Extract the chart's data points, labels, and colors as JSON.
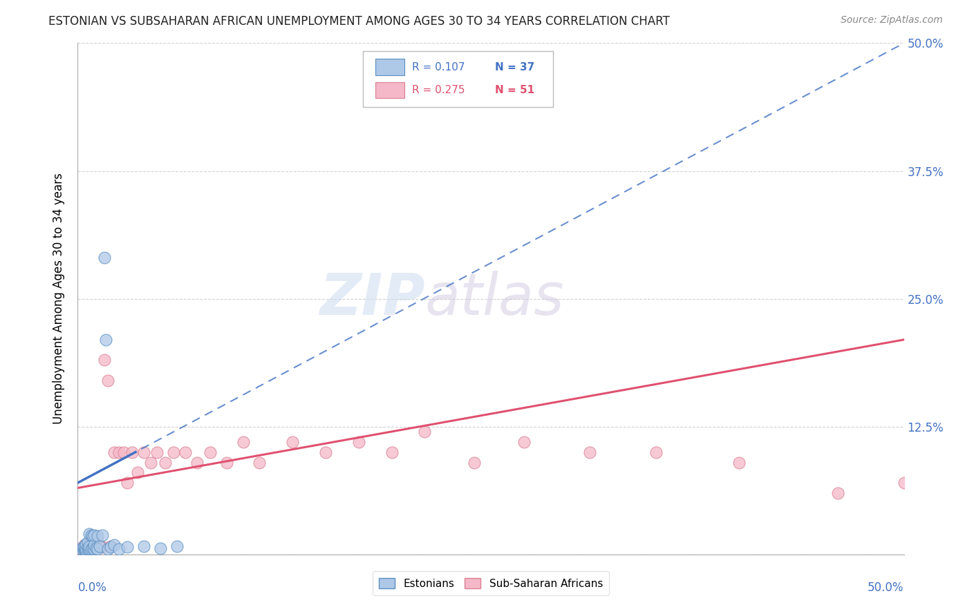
{
  "title": "ESTONIAN VS SUBSAHARAN AFRICAN UNEMPLOYMENT AMONG AGES 30 TO 34 YEARS CORRELATION CHART",
  "source": "Source: ZipAtlas.com",
  "ylabel": "Unemployment Among Ages 30 to 34 years",
  "xlim": [
    0,
    0.5
  ],
  "ylim": [
    0,
    0.5
  ],
  "ytick_vals": [
    0.0,
    0.125,
    0.25,
    0.375,
    0.5
  ],
  "ytick_labels": [
    "",
    "12.5%",
    "25.0%",
    "37.5%",
    "50.0%"
  ],
  "legend_r_estonian": "R = 0.107",
  "legend_n_estonian": "N = 37",
  "legend_r_african": "R = 0.275",
  "legend_n_african": "N = 51",
  "estonian_fill": "#aec8e8",
  "estonian_edge": "#5a8fc0",
  "estonian_line": "#4472c4",
  "african_fill": "#f4b8c8",
  "african_edge": "#d98090",
  "african_line": "#e05070",
  "watermark_zip": "ZIP",
  "watermark_atlas": "atlas",
  "background_color": "#ffffff",
  "grid_color": "#cccccc",
  "estonian_x": [
    0.002,
    0.003,
    0.003,
    0.004,
    0.004,
    0.004,
    0.005,
    0.005,
    0.005,
    0.006,
    0.006,
    0.006,
    0.007,
    0.007,
    0.007,
    0.008,
    0.008,
    0.009,
    0.009,
    0.01,
    0.01,
    0.01,
    0.011,
    0.012,
    0.012,
    0.013,
    0.015,
    0.016,
    0.017,
    0.018,
    0.02,
    0.022,
    0.025,
    0.03,
    0.04,
    0.05,
    0.06
  ],
  "estonian_y": [
    0.005,
    0.005,
    0.007,
    0.005,
    0.006,
    0.008,
    0.004,
    0.006,
    0.01,
    0.005,
    0.007,
    0.012,
    0.005,
    0.008,
    0.02,
    0.005,
    0.019,
    0.006,
    0.018,
    0.005,
    0.009,
    0.019,
    0.006,
    0.005,
    0.018,
    0.008,
    0.019,
    0.29,
    0.21,
    0.005,
    0.007,
    0.009,
    0.005,
    0.007,
    0.008,
    0.006,
    0.008
  ],
  "african_x": [
    0.001,
    0.002,
    0.003,
    0.004,
    0.004,
    0.005,
    0.005,
    0.006,
    0.007,
    0.007,
    0.008,
    0.008,
    0.009,
    0.01,
    0.01,
    0.011,
    0.012,
    0.013,
    0.015,
    0.016,
    0.018,
    0.02,
    0.022,
    0.025,
    0.028,
    0.03,
    0.033,
    0.036,
    0.04,
    0.044,
    0.048,
    0.053,
    0.058,
    0.065,
    0.072,
    0.08,
    0.09,
    0.1,
    0.11,
    0.13,
    0.15,
    0.17,
    0.19,
    0.21,
    0.24,
    0.27,
    0.31,
    0.35,
    0.4,
    0.46,
    0.5
  ],
  "african_y": [
    0.005,
    0.006,
    0.005,
    0.005,
    0.009,
    0.005,
    0.008,
    0.006,
    0.005,
    0.01,
    0.005,
    0.009,
    0.006,
    0.005,
    0.01,
    0.007,
    0.008,
    0.009,
    0.007,
    0.19,
    0.17,
    0.008,
    0.1,
    0.1,
    0.1,
    0.07,
    0.1,
    0.08,
    0.1,
    0.09,
    0.1,
    0.09,
    0.1,
    0.1,
    0.09,
    0.1,
    0.09,
    0.11,
    0.09,
    0.11,
    0.1,
    0.11,
    0.1,
    0.12,
    0.09,
    0.11,
    0.1,
    0.1,
    0.09,
    0.06,
    0.07
  ]
}
